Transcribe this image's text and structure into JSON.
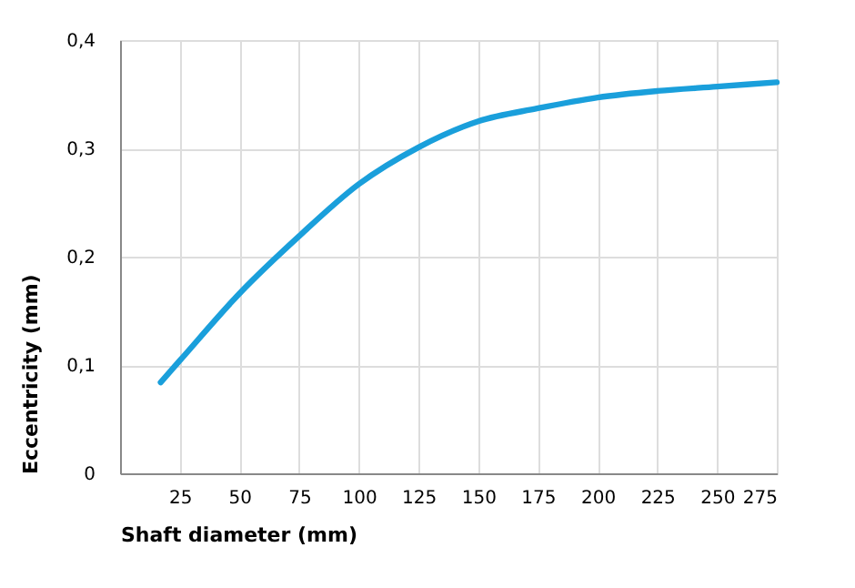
{
  "chart_data": {
    "type": "line",
    "xlabel": "Shaft diameter  (mm)",
    "ylabel": "Eccentricity  (mm)",
    "x": [
      17,
      25,
      50,
      75,
      100,
      125,
      150,
      175,
      200,
      225,
      250,
      275
    ],
    "series": [
      {
        "color": "#1a9fdb",
        "values": [
          0.084,
          0.104,
          0.166,
          0.219,
          0.267,
          0.301,
          0.325,
          0.337,
          0.347,
          0.353,
          0.357,
          0.361
        ]
      }
    ],
    "xlim": [
      0,
      275
    ],
    "xticks": [
      25,
      50,
      75,
      100,
      125,
      150,
      175,
      200,
      225,
      250,
      275
    ],
    "ylim": [
      0,
      0.4
    ],
    "yticks": [
      0,
      {
        "value": 0.1,
        "label": "0,1"
      },
      {
        "value": 0.2,
        "label": "0,2"
      },
      {
        "value": 0.3,
        "label": "0,3"
      },
      {
        "value": 0.4,
        "label": "0,4"
      }
    ],
    "grid": true,
    "marker": "none",
    "line_style": "solid"
  }
}
